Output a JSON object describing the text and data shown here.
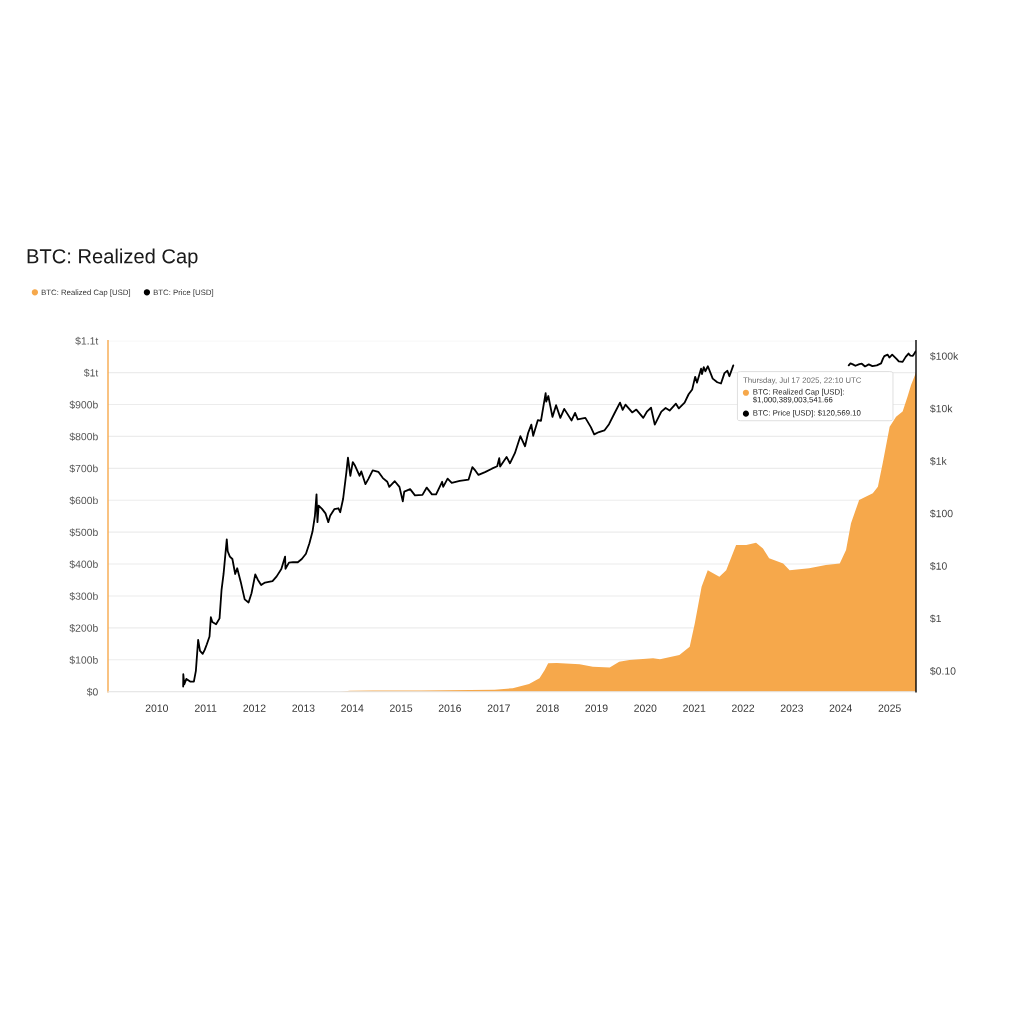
{
  "chart_data": {
    "type": "area",
    "title": "BTC: Realized Cap",
    "xlim": [
      "2009-01-01",
      "2025-07-17"
    ],
    "xticks": [
      "2010",
      "2011",
      "2012",
      "2013",
      "2014",
      "2015",
      "2016",
      "2017",
      "2018",
      "2019",
      "2020",
      "2021",
      "2022",
      "2023",
      "2024",
      "2025"
    ],
    "ylim": [
      0,
      1100000000000.0
    ],
    "yticks": [
      {
        "value": 0,
        "label": "$0"
      },
      {
        "value": 100000000000.0,
        "label": "$100b"
      },
      {
        "value": 200000000000.0,
        "label": "$200b"
      },
      {
        "value": 300000000000.0,
        "label": "$300b"
      },
      {
        "value": 400000000000.0,
        "label": "$400b"
      },
      {
        "value": 500000000000.0,
        "label": "$500b"
      },
      {
        "value": 600000000000.0,
        "label": "$600b"
      },
      {
        "value": 700000000000.0,
        "label": "$700b"
      },
      {
        "value": 800000000000.0,
        "label": "$800b"
      },
      {
        "value": 900000000000.0,
        "label": "$900b"
      },
      {
        "value": 1000000000000.0,
        "label": "$1t"
      },
      {
        "value": 1100000000000.0,
        "label": "$1.1t"
      }
    ],
    "y2lim": [
      0.04,
      195000
    ],
    "y2ticks": [
      {
        "value": 0.1,
        "label": "$0.10"
      },
      {
        "value": 1,
        "label": "$1"
      },
      {
        "value": 10,
        "label": "$10"
      },
      {
        "value": 100,
        "label": "$100"
      },
      {
        "value": 1000,
        "label": "$1k"
      },
      {
        "value": 10000,
        "label": "$10k"
      },
      {
        "value": 100000,
        "label": "$100k"
      }
    ],
    "log": "y2",
    "grid": "y",
    "legend": "top left",
    "annotations": [
      "Thursday, Jul 17 2025, 22:10 UTC",
      "BTC: Realized Cap [USD]: $1,000,389,003,541.66",
      "BTC: Price [USD]: $120,569.10"
    ],
    "series": [
      {
        "name": "BTC: Realized Cap [USD]",
        "axis": "y",
        "color": "#f6a84b",
        "x": [
          "2009-01-03",
          "2013-10-01",
          "2013-12-15",
          "2014-06-01",
          "2015-06-01",
          "2016-06-01",
          "2016-12-01",
          "2017-04-15",
          "2017-08-15",
          "2017-11-01",
          "2017-12-10",
          "2018-01-05",
          "2018-03-10",
          "2018-08-28",
          "2018-12-05",
          "2019-04-10",
          "2019-06-20",
          "2019-09-05",
          "2020-02-28",
          "2020-04-20",
          "2020-09-12",
          "2020-11-28",
          "2021-01-05",
          "2021-02-25",
          "2021-04-12",
          "2021-07-08",
          "2021-08-28",
          "2021-11-10",
          "2022-01-25",
          "2022-04-08",
          "2022-05-30",
          "2022-07-15",
          "2022-10-28",
          "2022-12-15",
          "2023-05-10",
          "2023-09-12",
          "2023-12-25",
          "2024-02-10",
          "2024-03-18",
          "2024-05-18",
          "2024-08-28",
          "2024-10-05",
          "2024-11-10",
          "2025-01-01",
          "2025-02-18",
          "2025-04-08",
          "2025-05-15",
          "2025-06-10",
          "2025-07-17"
        ],
        "values": [
          0,
          0,
          3000000000.0,
          4000000000.0,
          4000000000.0,
          5000000000.0,
          6000000000.0,
          11000000000.0,
          24000000000.0,
          42000000000.0,
          68000000000.0,
          89000000000.0,
          90000000000.0,
          86000000000.0,
          78000000000.0,
          76000000000.0,
          94000000000.0,
          99000000000.0,
          105000000000.0,
          102000000000.0,
          115000000000.0,
          141000000000.0,
          214000000000.0,
          329000000000.0,
          381000000000.0,
          360000000000.0,
          381000000000.0,
          460000000000.0,
          460000000000.0,
          467000000000.0,
          449000000000.0,
          418000000000.0,
          402000000000.0,
          381000000000.0,
          387000000000.0,
          397000000000.0,
          402000000000.0,
          444000000000.0,
          528000000000.0,
          601000000000.0,
          622000000000.0,
          642000000000.0,
          716000000000.0,
          830000000000.0,
          862000000000.0,
          878000000000.0,
          925000000000.0,
          961000000000.0,
          1000000000000.0
        ]
      },
      {
        "name": "BTC: Price [USD]",
        "type": "line",
        "axis": "y2",
        "color": "#000000",
        "x": [
          "2010-07-17",
          "2010-07-18",
          "2010-07-25",
          "2010-08-10",
          "2010-09-10",
          "2010-10-05",
          "2010-10-20",
          "2010-11-06",
          "2010-11-20",
          "2010-12-10",
          "2010-12-25",
          "2011-01-10",
          "2011-01-30",
          "2011-02-09",
          "2011-02-20",
          "2011-03-20",
          "2011-04-15",
          "2011-04-30",
          "2011-05-15",
          "2011-06-08",
          "2011-06-15",
          "2011-07-01",
          "2011-07-20",
          "2011-08-10",
          "2011-08-25",
          "2011-09-20",
          "2011-10-20",
          "2011-11-18",
          "2011-12-10",
          "2012-01-07",
          "2012-01-25",
          "2012-02-20",
          "2012-03-20",
          "2012-05-15",
          "2012-06-15",
          "2012-07-20",
          "2012-08-17",
          "2012-08-20",
          "2012-09-15",
          "2012-10-15",
          "2012-11-20",
          "2012-12-20",
          "2013-01-20",
          "2013-02-15",
          "2013-03-10",
          "2013-03-28",
          "2013-04-09",
          "2013-04-16",
          "2013-04-25",
          "2013-05-20",
          "2013-06-15",
          "2013-07-06",
          "2013-07-20",
          "2013-08-20",
          "2013-09-20",
          "2013-10-03",
          "2013-10-25",
          "2013-11-18",
          "2013-11-30",
          "2013-12-18",
          "2014-01-05",
          "2014-01-20",
          "2014-02-25",
          "2014-03-10",
          "2014-04-10",
          "2014-05-01",
          "2014-06-03",
          "2014-07-15",
          "2014-08-18",
          "2014-09-20",
          "2014-10-05",
          "2014-11-15",
          "2014-12-20",
          "2015-01-14",
          "2015-01-25",
          "2015-03-10",
          "2015-04-15",
          "2015-06-10",
          "2015-07-12",
          "2015-08-20",
          "2015-09-20",
          "2015-11-04",
          "2015-11-12",
          "2015-12-15",
          "2016-01-15",
          "2016-03-15",
          "2016-05-20",
          "2016-06-17",
          "2016-07-10",
          "2016-08-02",
          "2016-09-20",
          "2016-11-10",
          "2016-12-20",
          "2017-01-04",
          "2017-01-11",
          "2017-02-28",
          "2017-03-25",
          "2017-05-01",
          "2017-06-11",
          "2017-07-16",
          "2017-08-08",
          "2017-09-01",
          "2017-09-15",
          "2017-10-20",
          "2017-11-12",
          "2017-12-17",
          "2017-12-22",
          "2018-01-06",
          "2018-02-06",
          "2018-03-05",
          "2018-04-06",
          "2018-05-05",
          "2018-06-29",
          "2018-07-25",
          "2018-08-14",
          "2018-10-10",
          "2018-11-20",
          "2018-12-15",
          "2019-01-20",
          "2019-03-01",
          "2019-04-05",
          "2019-05-15",
          "2019-06-26",
          "2019-07-16",
          "2019-08-06",
          "2019-09-25",
          "2019-10-26",
          "2019-12-17",
          "2020-01-15",
          "2020-02-13",
          "2020-03-12",
          "2020-04-30",
          "2020-06-01",
          "2020-07-01",
          "2020-08-17",
          "2020-09-08",
          "2020-10-21",
          "2020-11-20",
          "2020-12-17",
          "2021-01-08",
          "2021-01-22",
          "2021-02-21",
          "2021-02-28",
          "2021-03-13",
          "2021-03-25",
          "2021-04-13",
          "2021-05-19",
          "2021-06-22",
          "2021-07-20",
          "2021-08-15",
          "2021-09-06",
          "2021-09-21",
          "2021-10-20",
          "2021-11-15",
          "2024-02-15",
          "2024-03-01",
          "2024-03-14",
          "2024-04-01",
          "2024-04-20",
          "2024-05-20",
          "2024-06-07",
          "2024-07-01",
          "2024-07-29",
          "2024-08-25",
          "2024-09-27",
          "2024-10-29",
          "2024-11-12",
          "2024-11-22",
          "2024-12-17",
          "2024-12-30",
          "2025-01-20",
          "2025-02-25",
          "2025-03-10",
          "2025-04-08",
          "2025-05-01",
          "2025-05-22",
          "2025-06-05",
          "2025-06-22",
          "2025-07-01",
          "2025-07-14",
          "2025-07-17"
        ],
        "values": [
          0.05,
          0.086,
          0.055,
          0.07,
          0.062,
          0.062,
          0.1,
          0.39,
          0.24,
          0.21,
          0.25,
          0.32,
          0.45,
          1.05,
          0.85,
          0.77,
          1.0,
          3.5,
          7,
          31.9,
          19,
          15,
          13.5,
          7,
          9,
          5,
          2.3,
          2.0,
          3.0,
          6.9,
          5.5,
          4.3,
          4.8,
          5.1,
          6.3,
          8.7,
          15.0,
          8.8,
          11.5,
          11.8,
          11.7,
          13.5,
          17,
          27,
          45,
          90,
          230,
          68,
          140,
          122,
          100,
          68,
          90,
          120,
          125,
          105,
          190,
          600,
          1150,
          520,
          950,
          830,
          520,
          630,
          360,
          450,
          660,
          620,
          470,
          400,
          320,
          410,
          320,
          170,
          260,
          290,
          220,
          225,
          310,
          230,
          230,
          400,
          320,
          460,
          380,
          415,
          440,
          760,
          650,
          540,
          610,
          710,
          790,
          1130,
          780,
          1190,
          900,
          1400,
          2950,
          1900,
          3400,
          4900,
          3000,
          6000,
          5800,
          19500,
          13500,
          17200,
          6900,
          11500,
          6600,
          9800,
          5900,
          8200,
          6200,
          6600,
          4400,
          3200,
          3550,
          3800,
          5000,
          8000,
          12900,
          9400,
          11800,
          8400,
          9500,
          6600,
          8800,
          10300,
          4900,
          8700,
          10200,
          9100,
          12300,
          10000,
          12900,
          18600,
          23000,
          40000,
          31000,
          57000,
          45000,
          61000,
          51000,
          63500,
          37000,
          31500,
          29800,
          47000,
          52000,
          41000,
          66000,
          null,
          null,
          66000,
          72000,
          69000,
          65000,
          70000,
          71000,
          63000,
          69000,
          64000,
          66000,
          72000,
          89000,
          99000,
          106000,
          93000,
          106000,
          86000,
          79000,
          77000,
          96000,
          111000,
          101000,
          100000,
          107000,
          122000,
          120569.1
        ]
      }
    ]
  }
}
